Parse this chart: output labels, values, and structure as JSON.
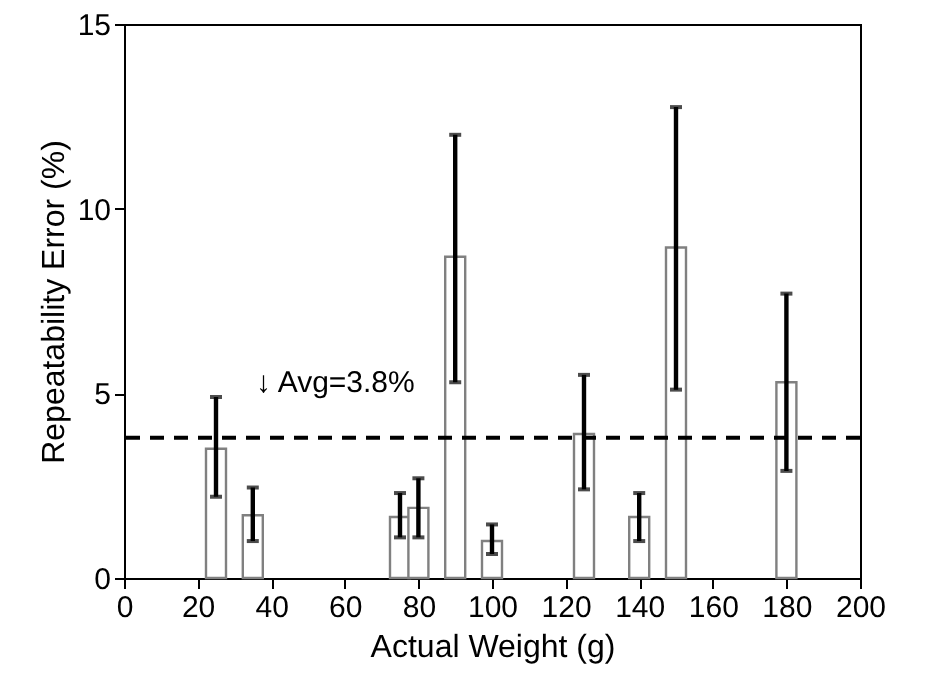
{
  "chart_data": {
    "type": "bar",
    "xlabel": "Actual Weight (g)",
    "ylabel": "Repeatability Error (%)",
    "x": [
      25,
      35,
      75,
      80,
      90,
      100,
      125,
      140,
      150,
      180
    ],
    "values": [
      3.5,
      1.7,
      1.65,
      1.9,
      8.7,
      1.0,
      3.9,
      1.65,
      8.95,
      5.3
    ],
    "errors": [
      [
        2.2,
        4.9
      ],
      [
        1.0,
        2.45
      ],
      [
        1.1,
        2.3
      ],
      [
        1.1,
        2.7
      ],
      [
        5.3,
        12.0
      ],
      [
        0.65,
        1.45
      ],
      [
        2.4,
        5.5
      ],
      [
        1.0,
        2.3
      ],
      [
        5.1,
        12.75
      ],
      [
        2.9,
        7.7
      ]
    ],
    "color": "#ffffff",
    "xlim": [
      0,
      200
    ],
    "xticks": [
      0,
      20,
      40,
      60,
      80,
      100,
      120,
      140,
      160,
      180,
      200
    ],
    "ylim": [
      0,
      15
    ],
    "yticks": [
      0,
      5,
      10,
      15
    ],
    "ref_lines": [
      {
        "axis": "y",
        "value": 3.8,
        "label": "↓ Avg=3.8%",
        "line_style": "dashed",
        "color": "#000000"
      }
    ]
  }
}
